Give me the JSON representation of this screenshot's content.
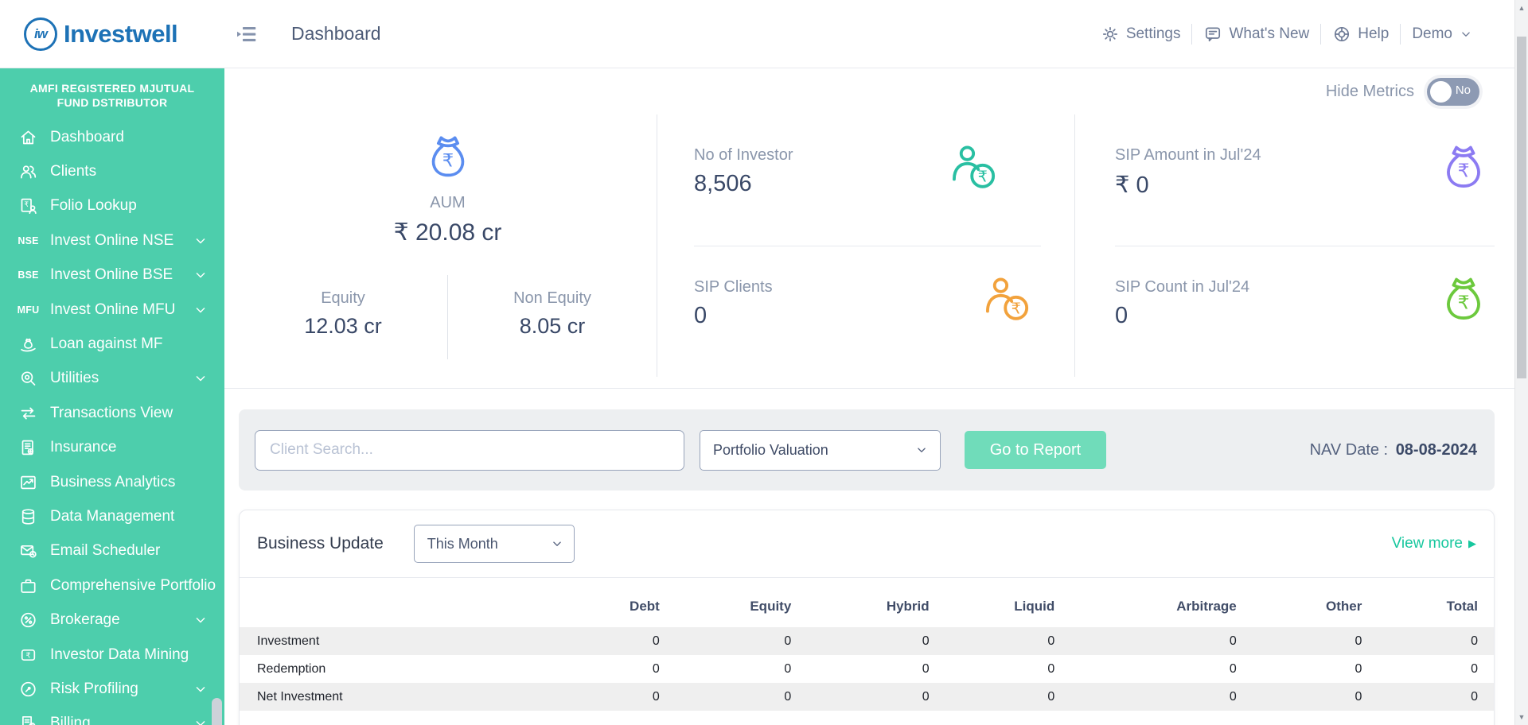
{
  "header": {
    "logo_monogram": "iw",
    "logo_text": "Investwell",
    "page_title": "Dashboard",
    "nav": [
      {
        "label": "Settings",
        "icon": "gear-icon"
      },
      {
        "label": "What's New",
        "icon": "chat-icon"
      },
      {
        "label": "Help",
        "icon": "lifebuoy-icon"
      }
    ],
    "account_label": "Demo"
  },
  "sidebar": {
    "banner": "AMFI REGISTERED MJUTUAL FUND DSTRIBUTOR",
    "items": [
      {
        "label": "Dashboard",
        "icon": "home-icon",
        "expandable": false
      },
      {
        "label": "Clients",
        "icon": "users-icon",
        "expandable": false
      },
      {
        "label": "Folio Lookup",
        "icon": "folio-lookup-icon",
        "expandable": false
      },
      {
        "label": "Invest Online NSE",
        "icon": "nse-icon",
        "expandable": true
      },
      {
        "label": "Invest Online BSE",
        "icon": "bse-icon",
        "expandable": true
      },
      {
        "label": "Invest Online MFU",
        "icon": "mfu-icon",
        "expandable": true
      },
      {
        "label": "Loan against MF",
        "icon": "loan-icon",
        "expandable": false
      },
      {
        "label": "Utilities",
        "icon": "utilities-icon",
        "expandable": true
      },
      {
        "label": "Transactions View",
        "icon": "transactions-icon",
        "expandable": false
      },
      {
        "label": "Insurance",
        "icon": "insurance-icon",
        "expandable": false
      },
      {
        "label": "Business Analytics",
        "icon": "analytics-icon",
        "expandable": false
      },
      {
        "label": "Data Management",
        "icon": "database-icon",
        "expandable": false
      },
      {
        "label": "Email Scheduler",
        "icon": "email-icon",
        "expandable": false
      },
      {
        "label": "Comprehensive Portfolio",
        "icon": "briefcase-icon",
        "expandable": false
      },
      {
        "label": "Brokerage",
        "icon": "percent-icon",
        "expandable": true
      },
      {
        "label": "Investor Data Mining",
        "icon": "rupee-square-icon",
        "expandable": false
      },
      {
        "label": "Risk Profiling",
        "icon": "gauge-icon",
        "expandable": true
      },
      {
        "label": "Billing",
        "icon": "billing-icon",
        "expandable": true
      }
    ]
  },
  "metrics": {
    "hide_metrics_label": "Hide Metrics",
    "toggle_value": "No",
    "aum": {
      "label": "AUM",
      "value": "₹ 20.08 cr",
      "icon": "money-bag-icon",
      "icon_color": "#5b8df0",
      "equity_label": "Equity",
      "equity_value": "12.03 cr",
      "non_equity_label": "Non Equity",
      "non_equity_value": "8.05 cr"
    },
    "cards": [
      {
        "label": "No of Investor",
        "value": "8,506",
        "icon": "investor-rupee-icon",
        "color": "#29bfa2"
      },
      {
        "label": "SIP Clients",
        "value": "0",
        "icon": "investor-rupee-icon",
        "color": "#f2a23c"
      },
      {
        "label": "SIP Amount in Jul'24",
        "value": "₹ 0",
        "icon": "money-bag-icon",
        "color": "#8c7bf2"
      },
      {
        "label": "SIP Count in Jul'24",
        "value": "0",
        "icon": "money-bag-icon",
        "color": "#6cc93d"
      }
    ]
  },
  "search_panel": {
    "client_search_placeholder": "Client Search...",
    "report_select_value": "Portfolio Valuation",
    "go_button_label": "Go to Report",
    "nav_date_label": "NAV Date :",
    "nav_date_value": "08-08-2024"
  },
  "business_update": {
    "title": "Business Update",
    "period_select_value": "This Month",
    "view_more_label": "View more",
    "table": {
      "columns": [
        "Debt",
        "Equity",
        "Hybrid",
        "Liquid",
        "Arbitrage",
        "Other",
        "Total"
      ],
      "rows": [
        {
          "label": "Investment",
          "values": [
            "0",
            "0",
            "0",
            "0",
            "0",
            "0",
            "0"
          ]
        },
        {
          "label": "Redemption",
          "values": [
            "0",
            "0",
            "0",
            "0",
            "0",
            "0",
            "0"
          ]
        },
        {
          "label": "Net Investment",
          "values": [
            "0",
            "0",
            "0",
            "0",
            "0",
            "0",
            "0"
          ]
        }
      ]
    }
  },
  "colors": {
    "sidebar_bg": "#4dceac",
    "logo_blue": "#1d72b6",
    "accent_teal": "#17c79e",
    "button_bg": "#70dcba",
    "toggle_bg": "#8d9ab3"
  }
}
